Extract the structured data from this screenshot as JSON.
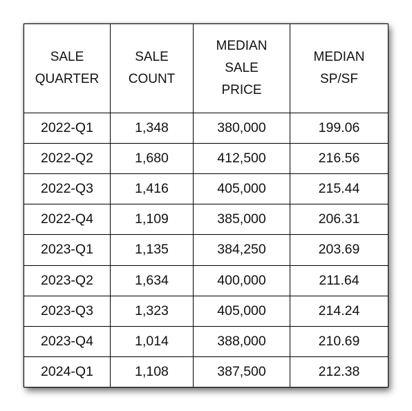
{
  "chart_data": {
    "type": "table",
    "columns": [
      [
        "SALE",
        "QUARTER"
      ],
      [
        "SALE",
        "COUNT"
      ],
      [
        "MEDIAN",
        "SALE",
        "PRICE"
      ],
      [
        "MEDIAN",
        "SP/SF"
      ]
    ],
    "rows": [
      [
        "2022-Q1",
        "1,348",
        "380,000",
        "199.06"
      ],
      [
        "2022-Q2",
        "1,680",
        "412,500",
        "216.56"
      ],
      [
        "2022-Q3",
        "1,416",
        "405,000",
        "215.44"
      ],
      [
        "2022-Q4",
        "1,109",
        "385,000",
        "206.31"
      ],
      [
        "2023-Q1",
        "1,135",
        "384,250",
        "203.69"
      ],
      [
        "2023-Q2",
        "1,634",
        "400,000",
        "211.64"
      ],
      [
        "2023-Q3",
        "1,323",
        "405,000",
        "214.24"
      ],
      [
        "2023-Q4",
        "1,014",
        "388,000",
        "210.69"
      ],
      [
        "2024-Q1",
        "1,108",
        "387,500",
        "212.38"
      ]
    ]
  }
}
